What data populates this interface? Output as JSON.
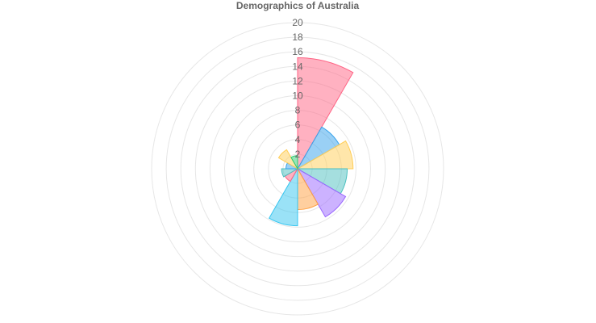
{
  "chart_data": {
    "type": "polarArea",
    "title": "Demographics of Australia",
    "r_ticks": [
      "2",
      "4",
      "6",
      "8",
      "10",
      "12",
      "14",
      "16",
      "18",
      "20"
    ],
    "r_range": [
      0,
      20
    ],
    "grid": true,
    "legend": "none",
    "series": [
      {
        "values": [
          15.2,
          6.6,
          7.6,
          6.8,
          7.6,
          5.6,
          7.8,
          2.0,
          2.2,
          1.6,
          3.0,
          1.8
        ],
        "colors": [
          "#ff6384",
          "#36a2eb",
          "#ffcd56",
          "#4bc0c0",
          "#9966ff",
          "#ff9f40",
          "#36c5f0",
          "#ff6384",
          "#4bc0c0",
          "#36a2eb",
          "#ffcd56",
          "#2ecc71"
        ]
      }
    ]
  }
}
